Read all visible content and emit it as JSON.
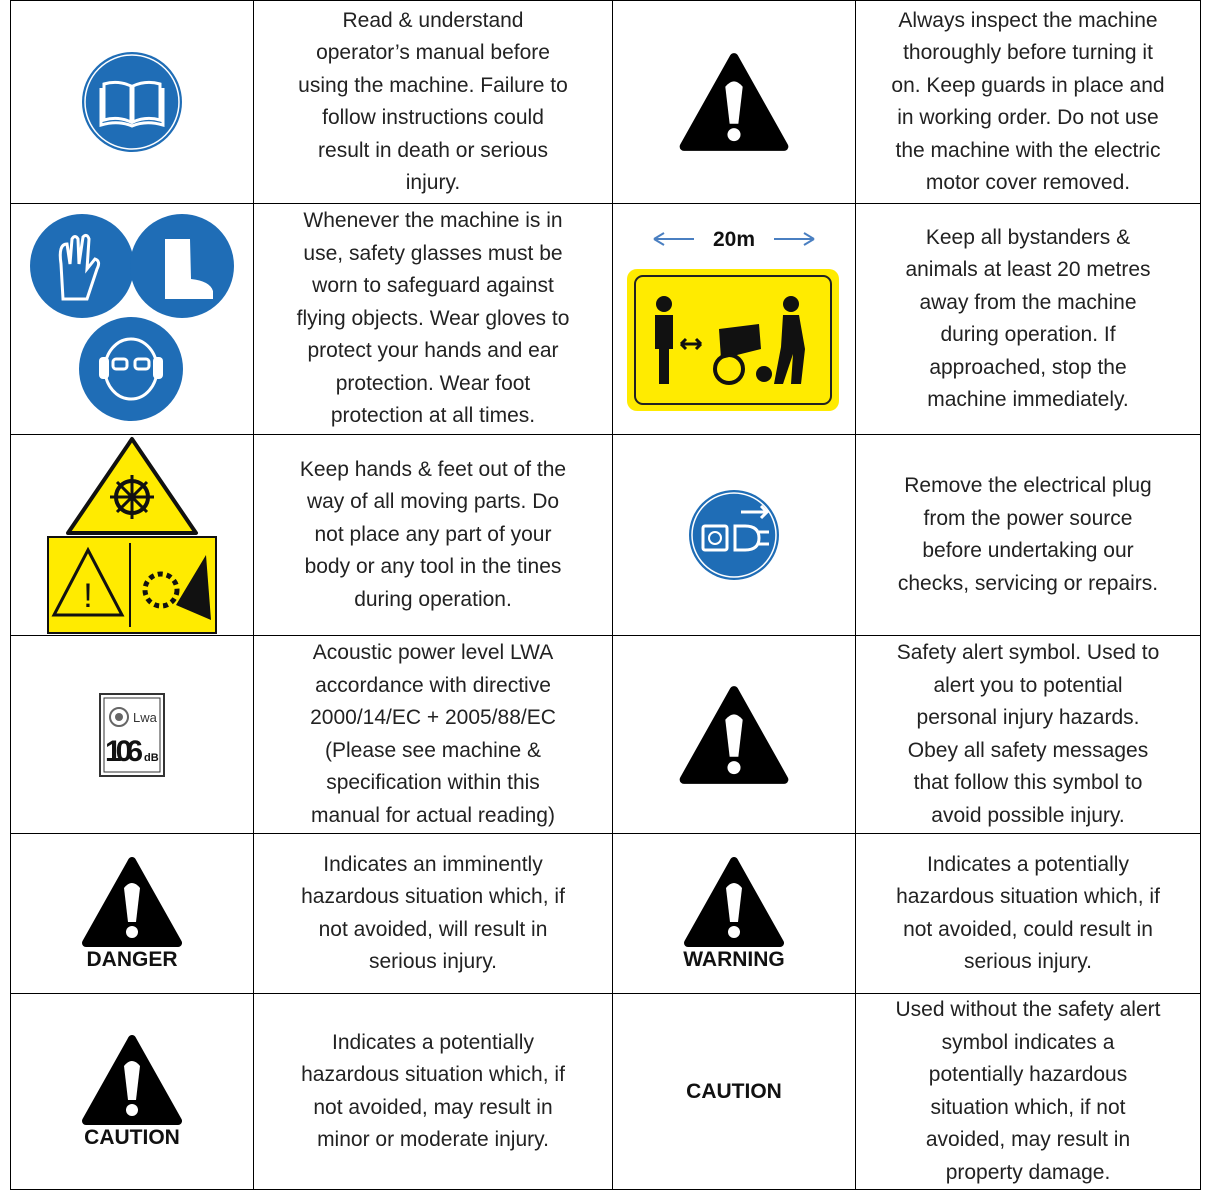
{
  "table": {
    "rows": [
      {
        "left_text": [
          "Read & understand",
          "operator’s manual before",
          "using the machine. Failure to",
          "follow instructions could",
          "result in death or serious",
          "injury."
        ],
        "right_text": [
          "Always inspect the machine",
          "thoroughly before turning it",
          "on. Keep guards in place and",
          "in working order. Do not use",
          "the machine with the electric",
          "motor cover removed."
        ]
      },
      {
        "left_text": [
          "Whenever the machine is in",
          "use, safety glasses must be",
          "worn to safeguard against",
          "flying objects. Wear gloves to",
          "protect your hands and ear",
          "protection. Wear foot",
          "protection at all times."
        ],
        "right_icon_text": "20m",
        "right_text": [
          "Keep all bystanders &",
          "animals at least 20 metres",
          "away from the machine",
          "during operation. If",
          "approached, stop the",
          "machine immediately."
        ]
      },
      {
        "left_text": [
          "Keep hands & feet out of the",
          "way of all moving parts. Do",
          "not place any part of your",
          "body or any tool in the tines",
          "during operation."
        ],
        "right_text": [
          "Remove the electrical plug",
          "from the power source",
          "before undertaking our",
          "checks, servicing or repairs."
        ]
      },
      {
        "left_icon_text": [
          "Lwa",
          "106",
          "dB"
        ],
        "left_text": [
          "Acoustic power level LWA",
          "accordance with directive",
          "2000/14/EC + 2005/88/EC",
          "(Please see machine &",
          "specification within this",
          "manual for actual reading)"
        ],
        "right_text": [
          "Safety alert symbol. Used to",
          "alert you to potential",
          "personal injury hazards.",
          "Obey all safety messages",
          "that follow this symbol to",
          "avoid possible injury."
        ]
      },
      {
        "left_label": "DANGER",
        "left_text": [
          "Indicates an imminently",
          "hazardous situation which, if",
          "not avoided, will result in",
          "serious injury."
        ],
        "right_label": "WARNING",
        "right_text": [
          "Indicates a potentially",
          "hazardous situation which, if",
          "not avoided, could result in",
          "serious injury."
        ]
      },
      {
        "left_label": "CAUTION",
        "left_text": [
          "Indicates a potentially",
          "hazardous situation which, if",
          "not avoided, may result in",
          "minor or moderate injury."
        ],
        "right_label": "CAUTION",
        "right_text": [
          "Used without the safety alert",
          "symbol indicates a",
          "potentially hazardous",
          "situation which, if not",
          "avoided, may result in",
          "property damage."
        ]
      }
    ]
  }
}
